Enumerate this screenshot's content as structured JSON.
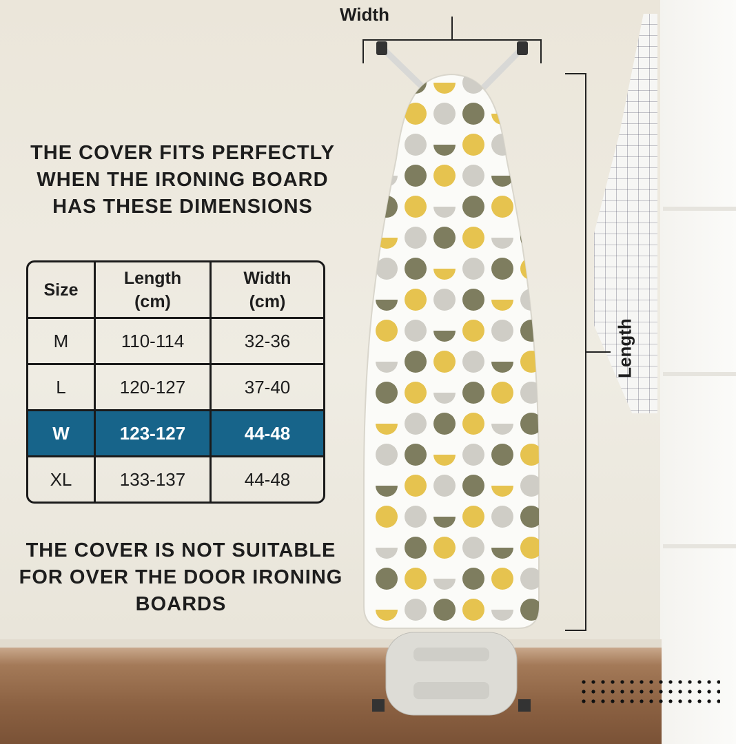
{
  "heading_top": "THE COVER FITS PERFECTLY WHEN THE IRONING BOARD HAS THESE DIMENSIONS",
  "heading_bottom": "THE COVER IS NOT SUITABLE FOR OVER THE DOOR IRONING BOARDS",
  "table": {
    "headers": [
      "Size",
      "Length (cm)",
      "Width (cm)"
    ],
    "rows": [
      {
        "size": "M",
        "length": "110-114",
        "width": "32-36"
      },
      {
        "size": "L",
        "length": "120-127",
        "width": "37-40"
      },
      {
        "size": "W",
        "length": "123-127",
        "width": "44-48",
        "highlighted": true
      },
      {
        "size": "XL",
        "length": "133-137",
        "width": "44-48"
      }
    ],
    "highlight_color": "#17648a"
  },
  "dimension_labels": {
    "width": "Width",
    "length": "Length"
  },
  "pattern_colors": [
    "#7e7d5f",
    "#e6c34f",
    "#cfcdc6"
  ]
}
